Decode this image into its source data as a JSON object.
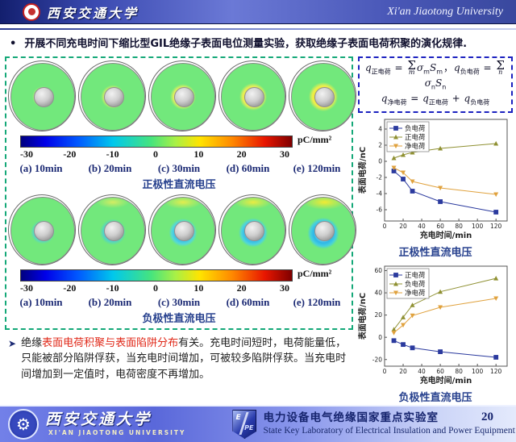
{
  "header": {
    "university_cn": "西安交通大学",
    "university_en": "Xi'an Jiaotong University"
  },
  "intro_bullet": "开展不同充电时间下缩比型GIL绝缘子表面电位测量实验，获取绝缘子表面电荷积聚的演化规律.",
  "formula": {
    "lines": [
      [
        {
          "v": "q",
          "sub": "正电荷"
        },
        {
          "v": " = ",
          "op": true
        },
        {
          "v": "Σ",
          "under": "m"
        },
        {
          "v": "σ",
          "sub": "m"
        },
        {
          "v": "S",
          "sub": "m"
        },
        {
          "v": "，",
          "op": true
        },
        {
          "v": "q",
          "sub": "负电荷"
        },
        {
          "v": " = ",
          "op": true
        },
        {
          "v": "Σ",
          "under": "n"
        },
        {
          "v": "σ",
          "sub": "n"
        },
        {
          "v": "S",
          "sub": "n"
        }
      ],
      [
        {
          "v": "q",
          "sub": "净电荷"
        },
        {
          "v": " = ",
          "op": true
        },
        {
          "v": "q",
          "sub": "正电荷"
        },
        {
          "v": " + ",
          "op": true
        },
        {
          "v": "q",
          "sub": "负电荷"
        }
      ]
    ]
  },
  "left_panel": {
    "time_labels": [
      "(a) 10min",
      "(b) 20min",
      "(c) 30min",
      "(d) 60min",
      "(e) 120min"
    ],
    "colorbar": {
      "ticks": [
        "-30",
        "-20",
        "-10",
        "0",
        "10",
        "20",
        "30"
      ],
      "unit": "pC/mm²"
    },
    "rows": [
      {
        "title": "正极性直流电压"
      },
      {
        "title": "负极性直流电压"
      }
    ]
  },
  "chart_data": [
    {
      "type": "line",
      "title": "正极性直流电压",
      "xlabel": "充电时间/min",
      "ylabel": "表面电荷/nC",
      "x": [
        10,
        20,
        30,
        60,
        120
      ],
      "xlim": [
        0,
        132
      ],
      "xticks": [
        0,
        20,
        40,
        60,
        80,
        100,
        120
      ],
      "ylim": [
        -7.4,
        5.2
      ],
      "yticks": [
        -6,
        -4,
        -2,
        0,
        2,
        4
      ],
      "legend_position": "top-left",
      "grid": false,
      "series": [
        {
          "name": "负电荷",
          "color": "#2b3a9e",
          "marker": "square",
          "values": [
            -1.2,
            -2.2,
            -3.7,
            -5.0,
            -6.3
          ]
        },
        {
          "name": "正电荷",
          "color": "#8f9032",
          "marker": "triangle-up",
          "values": [
            0.4,
            0.8,
            1.1,
            1.6,
            2.2
          ]
        },
        {
          "name": "净电荷",
          "color": "#e0a23e",
          "marker": "triangle-down",
          "values": [
            -0.8,
            -1.4,
            -2.5,
            -3.3,
            -4.1
          ]
        }
      ]
    },
    {
      "type": "line",
      "title": "负极性直流电压",
      "xlabel": "充电时间/min",
      "ylabel": "表面电荷/nC",
      "x": [
        10,
        20,
        30,
        60,
        120
      ],
      "xlim": [
        0,
        132
      ],
      "xticks": [
        0,
        20,
        40,
        60,
        80,
        100,
        120
      ],
      "ylim": [
        -26,
        64
      ],
      "yticks": [
        -20,
        0,
        20,
        40,
        60
      ],
      "legend_position": "top-left",
      "grid": false,
      "series": [
        {
          "name": "正电荷",
          "color": "#2b3a9e",
          "marker": "square",
          "values": [
            -3,
            -6.5,
            -9.5,
            -13,
            -18
          ]
        },
        {
          "name": "负电荷",
          "color": "#8f9032",
          "marker": "triangle-up",
          "values": [
            7,
            18,
            29,
            41,
            53
          ]
        },
        {
          "name": "净电荷",
          "color": "#e0a23e",
          "marker": "triangle-down",
          "values": [
            4,
            11,
            19.5,
            27,
            35
          ]
        }
      ]
    }
  ],
  "conclusion": {
    "marker": "➤",
    "segments": [
      {
        "text": "绝缘",
        "em": false
      },
      {
        "text": "表面电荷积聚与表面陷阱分布",
        "em": true
      },
      {
        "text": "有关。充电时间短时，电荷能量低，只能被部分陷阱俘获，当充电时间增加，可被较多陷阱俘获。当充电时间增加到一定值时，电荷密度不再增加。",
        "em": false
      }
    ]
  },
  "footer": {
    "university_cn": "西安交通大学",
    "university_en": "XI'AN JIAOTONG UNIVERSITY",
    "lab_cn": "电力设备电气绝缘国家重点实验室",
    "lab_en": "State Key Laboratory of Electrical Insulation and Power Equipment",
    "page": "20",
    "shield_top": "E",
    "shield_bottom": "PE"
  },
  "colors": {
    "box_green": "#14a878",
    "box_blue": "#1c22c0",
    "red_text": "#e02818",
    "navy_text": "#1c2a74"
  }
}
